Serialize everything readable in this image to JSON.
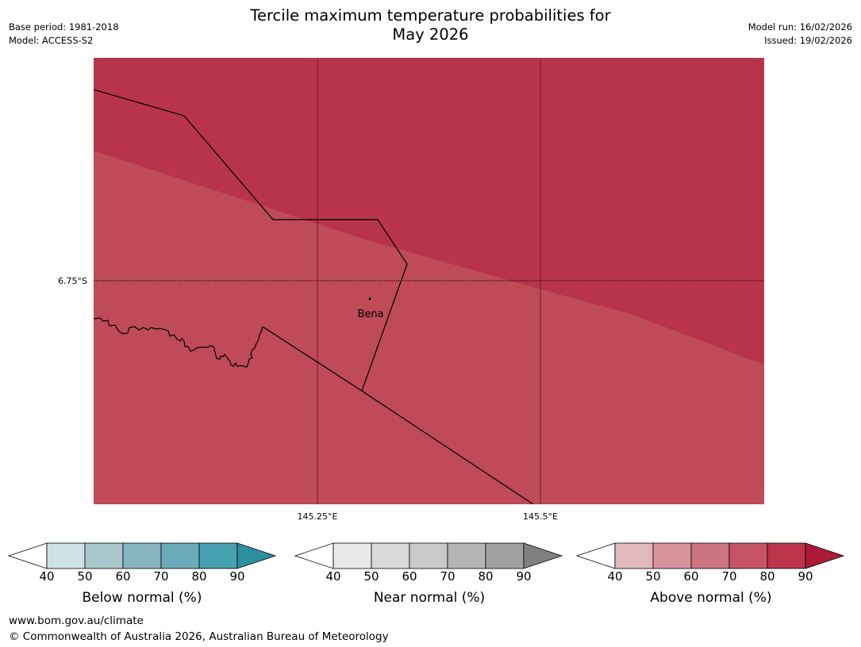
{
  "title": {
    "line1": "Tercile maximum temperature probabilities for",
    "line2": "May 2026"
  },
  "meta": {
    "base_period": "Base period: 1981-2018",
    "model": "Model: ACCESS-S2",
    "model_run": "Model run: 16/02/2026",
    "issued": "Issued: 19/02/2026"
  },
  "map": {
    "lat_label": "6.75°S",
    "lon_labels": [
      "145.25°E",
      "145.5°E"
    ],
    "place": "Bena",
    "colors": {
      "above_80_90": "#b8344a",
      "above_70_80": "#bf4a58",
      "border": "#000000"
    }
  },
  "colorbars": [
    {
      "label": "Below normal (%)",
      "ticks": [
        "40",
        "50",
        "60",
        "70",
        "80",
        "90"
      ],
      "colors": [
        "#ffffff",
        "#cbe2e7",
        "#a9c6cc",
        "#88b4c1",
        "#6aaab9",
        "#47a0af",
        "#2e8f9e"
      ]
    },
    {
      "label": "Near normal (%)",
      "ticks": [
        "40",
        "50",
        "60",
        "70",
        "80",
        "90"
      ],
      "colors": [
        "#ffffff",
        "#e8e8e8",
        "#d9d9d9",
        "#cacaca",
        "#b5b5b5",
        "#a0a0a0",
        "#808080"
      ]
    },
    {
      "label": "Above normal (%)",
      "ticks": [
        "40",
        "50",
        "60",
        "70",
        "80",
        "90"
      ],
      "colors": [
        "#ffffff",
        "#e3b8bd",
        "#d8949c",
        "#cc7580",
        "#c55566",
        "#bc3449",
        "#ab1a36"
      ]
    }
  ],
  "footer": {
    "url": "www.bom.gov.au/climate",
    "copyright": "© Commonwealth of Australia 2026, Australian Bureau of Meteorology"
  }
}
